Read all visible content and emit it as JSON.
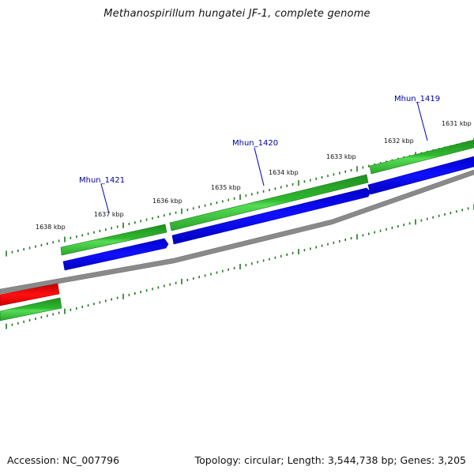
{
  "title": "Methanospirillum hungatei JF-1, complete genome",
  "footer": {
    "accession": "Accession: NC_007796",
    "stats": "Topology: circular; Length: 3,544,738 bp; Genes: 3,205"
  },
  "colors": {
    "forward_gene": "#33cc33",
    "reverse_gene": "#0000ee",
    "other_feature": "#ee0000",
    "backbone": "#888888",
    "tick": "#227722",
    "label": "#0000a0"
  },
  "scale_labels": [
    {
      "id": "1638",
      "text": "1638 kbp"
    },
    {
      "id": "1637",
      "text": "1637 kbp"
    },
    {
      "id": "1636",
      "text": "1636 kbp"
    },
    {
      "id": "1635",
      "text": "1635 kbp"
    },
    {
      "id": "1634",
      "text": "1634 kbp"
    },
    {
      "id": "1633",
      "text": "1633 kbp"
    },
    {
      "id": "1632",
      "text": "1632 kbp"
    },
    {
      "id": "1631",
      "text": "1631 kbp"
    }
  ],
  "gene_labels": [
    {
      "id": "mhun-1421",
      "text": "Mhun_1421"
    },
    {
      "id": "mhun-1420",
      "text": "Mhun_1420"
    },
    {
      "id": "mhun-1419",
      "text": "Mhun_1419"
    }
  ]
}
